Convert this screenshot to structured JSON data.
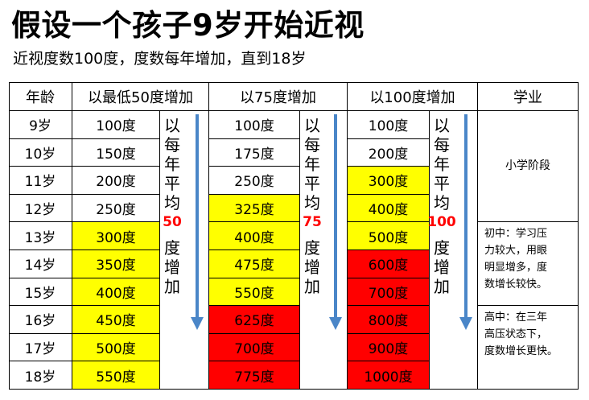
{
  "title": "假设一个孩子9岁开始近视",
  "subtitle": "近视度数100度，度数每年增加，直到18岁",
  "headers": [
    "年龄",
    "以最低50度增加",
    "以75度增加",
    "以100度增加",
    "学业"
  ],
  "ages": [
    "9岁",
    "10岁",
    "11岁",
    "12岁",
    "13岁",
    "14岁",
    "15岁",
    "16岁",
    "17岁",
    "18岁"
  ],
  "col50": [
    "100度",
    "150度",
    "200度",
    "250度",
    "300度",
    "350度",
    "400度",
    "450度",
    "500度",
    "550度"
  ],
  "col75": [
    "100度",
    "175度",
    "250度",
    "325度",
    "400度",
    "475度",
    "550度",
    "625度",
    "700度",
    "775度"
  ],
  "col100": [
    "100度",
    "200度",
    "300度",
    "400度",
    "500度",
    "600度",
    "700度",
    "800度",
    "900度",
    "1000度"
  ],
  "side50": {
    "top": "以每年平均",
    "rate": "50",
    "bottom": "度增加"
  },
  "side75": {
    "top": "以每年平均",
    "rate": "75",
    "bottom": "度增加"
  },
  "side100": {
    "top": "以每年平均",
    "rate": "100",
    "bottom": "度增加"
  },
  "study": {
    "primary": "小学阶段",
    "middle_lines": [
      "初中：学习压",
      "力较大，用眼",
      "明显增多，度",
      "数增长较快。"
    ],
    "high_lines": [
      "高中：在三年",
      "高压状态下，",
      "度数增长更快。"
    ]
  },
  "colors": {
    "yellow": "#ffff00",
    "red": "#ff0000",
    "arrow": "#4a86c8"
  }
}
